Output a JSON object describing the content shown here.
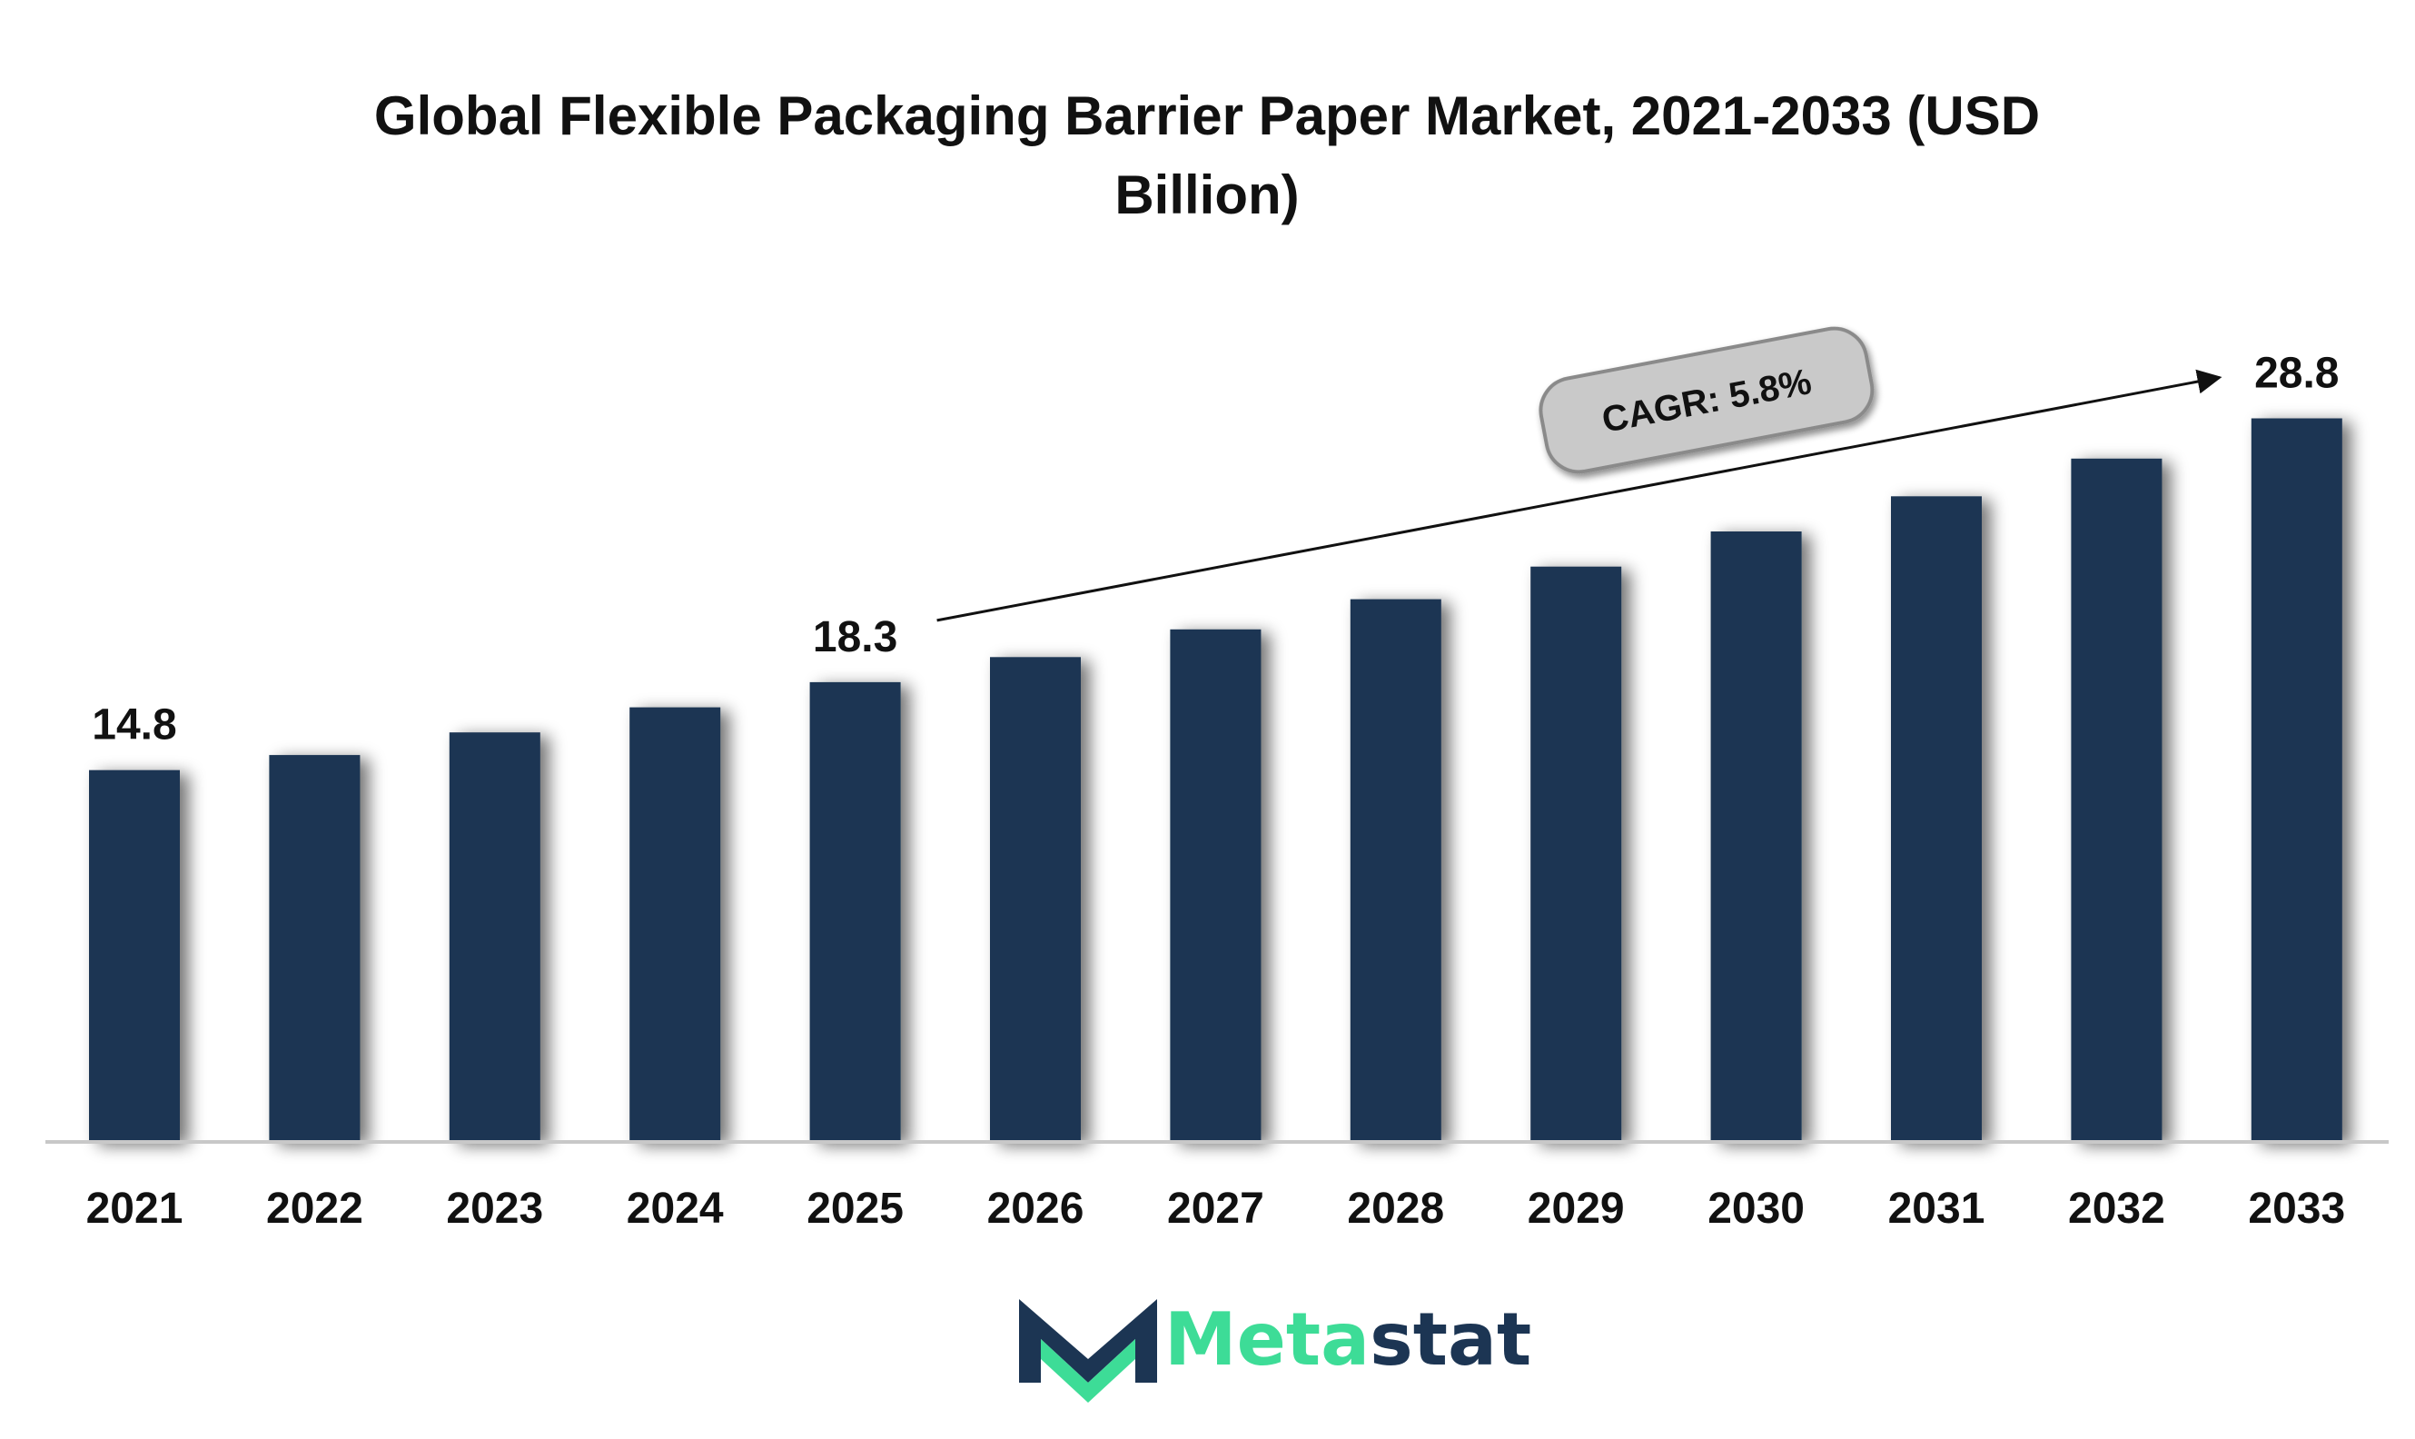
{
  "chart_data": {
    "type": "bar",
    "title_lines": [
      "Global Flexible Packaging Barrier Paper Market, 2021-2033 (USD",
      "Billion)"
    ],
    "categories": [
      "2021",
      "2022",
      "2023",
      "2024",
      "2025",
      "2026",
      "2027",
      "2028",
      "2029",
      "2030",
      "2031",
      "2032",
      "2033"
    ],
    "values": [
      14.8,
      15.4,
      16.3,
      17.3,
      18.3,
      19.3,
      20.4,
      21.6,
      22.9,
      24.3,
      25.7,
      27.2,
      28.8
    ],
    "labeled_points": [
      {
        "category": "2021",
        "label": "14.8"
      },
      {
        "category": "2025",
        "label": "18.3"
      },
      {
        "category": "2033",
        "label": "28.8"
      }
    ],
    "annotation": {
      "text": "CAGR: 5.8%",
      "from": "2025",
      "to": "2033"
    },
    "ylim": [
      0,
      29
    ],
    "xlabel": "",
    "ylabel": "",
    "grid": false,
    "legend": "none"
  },
  "colors": {
    "bar": "#1c3553",
    "axis": "#c8c8c8",
    "text": "#111111",
    "cagr_fill": "#c9c9c9",
    "cagr_stroke": "#8a8a8a",
    "logo_dark": "#1c3553",
    "logo_green": "#3ddc97"
  },
  "logo": {
    "part1": "Meta",
    "part2": "stat",
    "icon": "metastat-m-logo-icon"
  }
}
